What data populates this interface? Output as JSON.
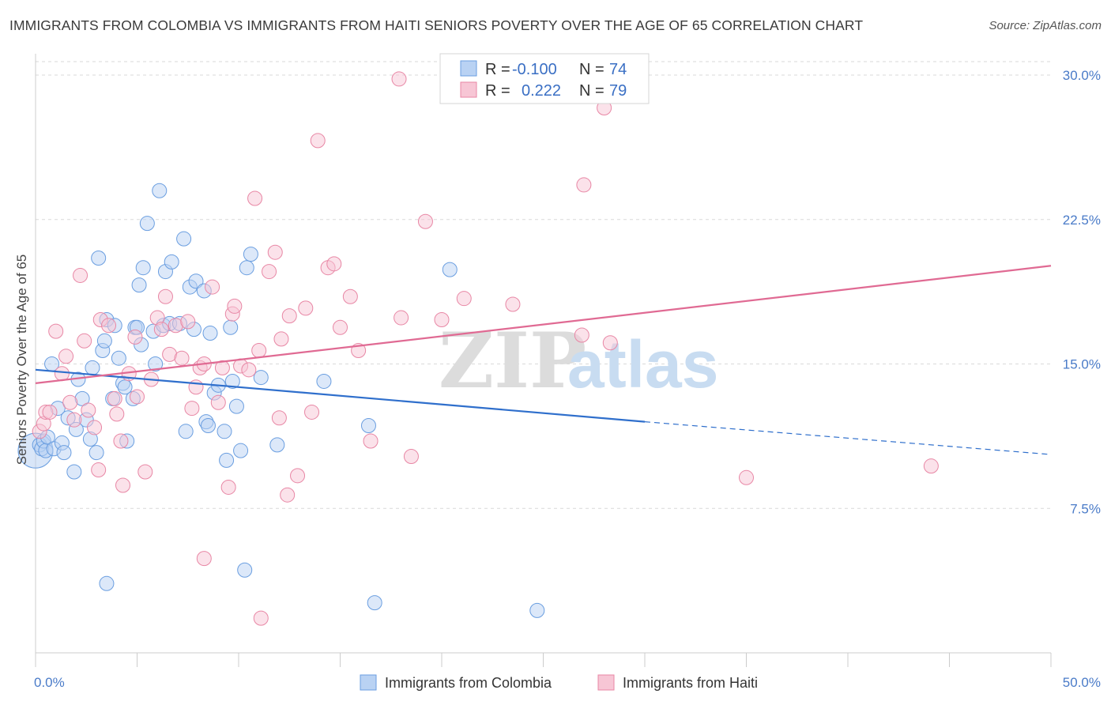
{
  "title": "IMMIGRANTS FROM COLOMBIA VS IMMIGRANTS FROM HAITI SENIORS POVERTY OVER THE AGE OF 65 CORRELATION CHART",
  "source": "Source: ZipAtlas.com",
  "watermark": {
    "zip": "ZIP",
    "atlas": "atlas"
  },
  "stats": [
    {
      "r_label": "R =",
      "r_value": "-0.100",
      "n_label": "N =",
      "n_value": "74"
    },
    {
      "r_label": "R =",
      "r_value": "0.222",
      "n_label": "N =",
      "n_value": "79"
    }
  ],
  "chart_data": {
    "type": "scatter",
    "title": "IMMIGRANTS FROM COLOMBIA VS IMMIGRANTS FROM HAITI SENIORS POVERTY OVER THE AGE OF 65 CORRELATION CHART",
    "xlabel": "",
    "ylabel": "Seniors Poverty Over the Age of 65",
    "xlim": [
      0,
      50
    ],
    "ylim": [
      0,
      30.7
    ],
    "x_tick_labels": [
      "0.0%",
      "50.0%"
    ],
    "y_ticks": [
      7.5,
      15.0,
      22.5,
      30.0
    ],
    "y_tick_labels": [
      "7.5%",
      "15.0%",
      "22.5%",
      "30.0%"
    ],
    "grid": true,
    "legend_position": "bottom",
    "series": [
      {
        "name": "Immigrants from Colombia",
        "color": "#6a9ee0",
        "fill": "#b9d2f3",
        "trend": {
          "x": [
            0,
            30
          ],
          "y": [
            14.7,
            12.0
          ],
          "dashed_extension": {
            "x": [
              30,
              50
            ],
            "y": [
              12.0,
              10.3
            ]
          }
        },
        "points": [
          [
            0.2,
            10.8
          ],
          [
            0.3,
            10.6
          ],
          [
            0.4,
            11.0
          ],
          [
            0.5,
            10.5
          ],
          [
            0.6,
            11.2
          ],
          [
            0.8,
            15.0
          ],
          [
            0.9,
            10.6
          ],
          [
            1.1,
            12.7
          ],
          [
            1.3,
            10.9
          ],
          [
            1.4,
            10.4
          ],
          [
            1.6,
            12.2
          ],
          [
            1.9,
            9.4
          ],
          [
            2.0,
            11.6
          ],
          [
            2.1,
            14.2
          ],
          [
            2.3,
            13.2
          ],
          [
            2.5,
            12.1
          ],
          [
            2.7,
            11.1
          ],
          [
            2.8,
            14.8
          ],
          [
            3.0,
            10.4
          ],
          [
            3.1,
            20.5
          ],
          [
            3.3,
            15.7
          ],
          [
            3.4,
            16.2
          ],
          [
            3.5,
            17.3
          ],
          [
            3.8,
            13.2
          ],
          [
            3.9,
            17.0
          ],
          [
            4.1,
            15.3
          ],
          [
            4.3,
            14.0
          ],
          [
            4.4,
            13.8
          ],
          [
            4.5,
            11.0
          ],
          [
            4.8,
            13.2
          ],
          [
            4.9,
            16.9
          ],
          [
            5.0,
            16.9
          ],
          [
            5.1,
            19.1
          ],
          [
            5.2,
            16.0
          ],
          [
            5.3,
            20.0
          ],
          [
            5.5,
            22.3
          ],
          [
            5.8,
            16.7
          ],
          [
            5.9,
            15.0
          ],
          [
            6.1,
            24.0
          ],
          [
            6.3,
            17.0
          ],
          [
            6.4,
            19.8
          ],
          [
            6.6,
            17.1
          ],
          [
            6.7,
            20.3
          ],
          [
            7.1,
            17.1
          ],
          [
            7.3,
            21.5
          ],
          [
            7.4,
            11.5
          ],
          [
            7.6,
            19.0
          ],
          [
            7.8,
            16.8
          ],
          [
            7.9,
            19.3
          ],
          [
            8.3,
            18.8
          ],
          [
            8.4,
            12.0
          ],
          [
            8.5,
            11.8
          ],
          [
            8.6,
            16.6
          ],
          [
            8.8,
            13.5
          ],
          [
            9.0,
            13.9
          ],
          [
            9.3,
            11.5
          ],
          [
            9.4,
            10.0
          ],
          [
            9.6,
            16.9
          ],
          [
            9.7,
            14.1
          ],
          [
            9.9,
            12.8
          ],
          [
            10.1,
            10.5
          ],
          [
            10.4,
            20.0
          ],
          [
            10.6,
            20.7
          ],
          [
            11.1,
            14.3
          ],
          [
            11.9,
            10.8
          ],
          [
            14.2,
            14.1
          ],
          [
            16.4,
            11.8
          ],
          [
            20.4,
            19.9
          ],
          [
            3.5,
            3.6
          ],
          [
            10.3,
            4.3
          ],
          [
            16.7,
            2.6
          ],
          [
            24.7,
            2.2
          ]
        ],
        "large_point": [
          0.0,
          10.5
        ]
      },
      {
        "name": "Immigrants from Haiti",
        "color": "#e887a5",
        "fill": "#f7c6d5",
        "trend": {
          "x": [
            0,
            50
          ],
          "y": [
            14.0,
            20.1
          ]
        },
        "points": [
          [
            0.2,
            11.5
          ],
          [
            0.4,
            11.9
          ],
          [
            0.5,
            12.5
          ],
          [
            0.7,
            12.5
          ],
          [
            1.0,
            16.7
          ],
          [
            1.3,
            14.5
          ],
          [
            1.5,
            15.4
          ],
          [
            1.7,
            13.0
          ],
          [
            1.9,
            12.1
          ],
          [
            2.2,
            19.6
          ],
          [
            2.4,
            16.2
          ],
          [
            2.6,
            12.6
          ],
          [
            2.9,
            11.7
          ],
          [
            3.1,
            9.5
          ],
          [
            3.2,
            17.3
          ],
          [
            3.6,
            17.0
          ],
          [
            3.9,
            13.2
          ],
          [
            4.0,
            12.4
          ],
          [
            4.2,
            11.0
          ],
          [
            4.3,
            8.7
          ],
          [
            4.6,
            14.5
          ],
          [
            4.9,
            16.4
          ],
          [
            5.0,
            13.3
          ],
          [
            5.4,
            9.4
          ],
          [
            5.7,
            14.2
          ],
          [
            6.0,
            17.4
          ],
          [
            6.2,
            16.8
          ],
          [
            6.4,
            18.5
          ],
          [
            6.6,
            15.5
          ],
          [
            6.9,
            17.0
          ],
          [
            7.2,
            15.3
          ],
          [
            7.5,
            17.2
          ],
          [
            7.7,
            12.7
          ],
          [
            7.9,
            13.8
          ],
          [
            8.1,
            14.8
          ],
          [
            8.3,
            15.0
          ],
          [
            8.7,
            19.0
          ],
          [
            9.0,
            13.0
          ],
          [
            9.2,
            14.8
          ],
          [
            9.5,
            8.6
          ],
          [
            9.7,
            17.6
          ],
          [
            9.8,
            18.0
          ],
          [
            10.1,
            14.9
          ],
          [
            10.5,
            14.7
          ],
          [
            10.8,
            23.6
          ],
          [
            11.0,
            15.7
          ],
          [
            11.5,
            19.8
          ],
          [
            11.8,
            20.8
          ],
          [
            12.0,
            12.2
          ],
          [
            12.1,
            16.3
          ],
          [
            12.4,
            8.2
          ],
          [
            12.5,
            17.5
          ],
          [
            12.9,
            9.2
          ],
          [
            13.3,
            17.9
          ],
          [
            13.6,
            12.5
          ],
          [
            13.9,
            26.6
          ],
          [
            14.4,
            20.0
          ],
          [
            14.7,
            20.2
          ],
          [
            15.0,
            16.9
          ],
          [
            15.5,
            18.5
          ],
          [
            15.9,
            15.7
          ],
          [
            16.5,
            11.0
          ],
          [
            18.0,
            17.4
          ],
          [
            18.5,
            10.2
          ],
          [
            19.2,
            22.4
          ],
          [
            20.0,
            17.3
          ],
          [
            21.1,
            18.4
          ],
          [
            23.5,
            18.1
          ],
          [
            26.9,
            16.5
          ],
          [
            27.0,
            24.3
          ],
          [
            28.3,
            16.1
          ],
          [
            35.0,
            9.1
          ],
          [
            44.1,
            9.7
          ],
          [
            8.3,
            4.9
          ],
          [
            11.1,
            1.8
          ],
          [
            17.9,
            29.8
          ],
          [
            28.0,
            28.3
          ]
        ]
      }
    ]
  },
  "legend": {
    "items": [
      {
        "label": "Immigrants from Colombia"
      },
      {
        "label": "Immigrants from Haiti"
      }
    ]
  }
}
